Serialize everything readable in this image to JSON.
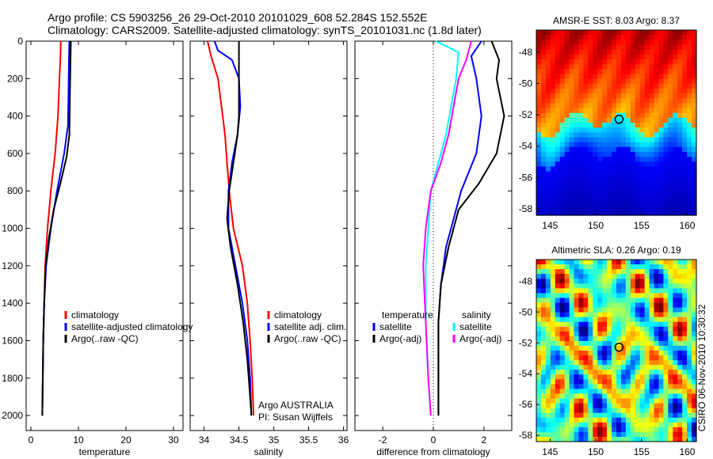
{
  "header": {
    "line1": "Argo profile: CS 5903256_26 29-Oct-2010 20101029_608 52.284S 152.552E",
    "line2": "Climatology: CARS2009. Satellite-adjusted climatology: synTS_20101031.nc (1.8d later)"
  },
  "side_stamp": "CSIRO 06-Nov-2010 10:30:32",
  "colors": {
    "climatology": "#ff0000",
    "satellite": "#0000ff",
    "argo": "#000000",
    "satellite_diff_salinity": "#00ffff",
    "argo_diff_salinity": "#ff00ff"
  },
  "chart_data": [
    {
      "type": "line",
      "xlabel": "temperature",
      "x_ticks": [
        "0",
        "10",
        "20",
        "30"
      ],
      "y_ticks": [
        "0",
        "200",
        "400",
        "600",
        "800",
        "1000",
        "1200",
        "1400",
        "1600",
        "1800",
        "2000"
      ],
      "xlim": [
        -1,
        32
      ],
      "ylim": [
        2080,
        0
      ],
      "y_reversed": true,
      "legend": [
        "climatology",
        "satellite-adjusted climatology",
        "Argo(..raw -QC)"
      ],
      "series": [
        {
          "name": "climatology",
          "color": "#ff0000",
          "points": [
            [
              6.3,
              0
            ],
            [
              6.2,
              100
            ],
            [
              6.0,
              200
            ],
            [
              5.7,
              400
            ],
            [
              5.1,
              600
            ],
            [
              4.2,
              800
            ],
            [
              3.5,
              1000
            ],
            [
              3.0,
              1200
            ],
            [
              2.8,
              1400
            ],
            [
              2.6,
              1600
            ],
            [
              2.5,
              1800
            ],
            [
              2.4,
              2000
            ]
          ]
        },
        {
          "name": "satellite-adjusted climatology",
          "color": "#0000ff",
          "points": [
            [
              8.1,
              0
            ],
            [
              8.0,
              100
            ],
            [
              7.9,
              300
            ],
            [
              7.8,
              450
            ],
            [
              7.0,
              600
            ],
            [
              5.5,
              800
            ],
            [
              4.2,
              1000
            ],
            [
              3.2,
              1200
            ],
            [
              2.8,
              1400
            ],
            [
              2.6,
              1600
            ],
            [
              2.5,
              1800
            ],
            [
              2.4,
              2000
            ]
          ]
        },
        {
          "name": "Argo(..raw -QC)",
          "color": "#000000",
          "points": [
            [
              8.4,
              0
            ],
            [
              8.3,
              150
            ],
            [
              8.2,
              300
            ],
            [
              8.1,
              500
            ],
            [
              7.5,
              620
            ],
            [
              6.2,
              760
            ],
            [
              4.8,
              900
            ],
            [
              3.8,
              1050
            ],
            [
              3.1,
              1200
            ],
            [
              2.8,
              1400
            ],
            [
              2.6,
              1600
            ],
            [
              2.5,
              1800
            ],
            [
              2.4,
              2000
            ]
          ]
        }
      ]
    },
    {
      "type": "line",
      "xlabel": "salinity",
      "x_ticks": [
        "34",
        "34.5",
        "35",
        "35.5",
        "36"
      ],
      "y_ticks": [],
      "xlim": [
        33.8,
        36.05
      ],
      "ylim": [
        2080,
        0
      ],
      "y_reversed": true,
      "legend": [
        "climatology",
        "satellite adj. clim.",
        "Argo(..raw -QC)"
      ],
      "annotations": [
        "Argo AUSTRALIA",
        "PI: Susan Wijffels"
      ],
      "series": [
        {
          "name": "climatology",
          "color": "#ff0000",
          "points": [
            [
              34.05,
              0
            ],
            [
              34.1,
              80
            ],
            [
              34.2,
              200
            ],
            [
              34.25,
              350
            ],
            [
              34.3,
              500
            ],
            [
              34.33,
              650
            ],
            [
              34.36,
              800
            ],
            [
              34.42,
              1000
            ],
            [
              34.55,
              1200
            ],
            [
              34.62,
              1400
            ],
            [
              34.66,
              1600
            ],
            [
              34.69,
              1800
            ],
            [
              34.71,
              2000
            ]
          ]
        },
        {
          "name": "satellite adj. clim.",
          "color": "#0000ff",
          "points": [
            [
              34.15,
              0
            ],
            [
              34.2,
              50
            ],
            [
              34.4,
              100
            ],
            [
              34.5,
              200
            ],
            [
              34.52,
              350
            ],
            [
              34.48,
              500
            ],
            [
              34.4,
              650
            ],
            [
              34.35,
              800
            ],
            [
              34.35,
              1000
            ],
            [
              34.45,
              1200
            ],
            [
              34.55,
              1400
            ],
            [
              34.62,
              1600
            ],
            [
              34.66,
              1800
            ],
            [
              34.68,
              2000
            ]
          ]
        },
        {
          "name": "Argo(..raw -QC)",
          "color": "#000000",
          "points": [
            [
              34.5,
              0
            ],
            [
              34.5,
              100
            ],
            [
              34.5,
              200
            ],
            [
              34.5,
              300
            ],
            [
              34.5,
              400
            ],
            [
              34.48,
              500
            ],
            [
              34.42,
              650
            ],
            [
              34.36,
              800
            ],
            [
              34.33,
              950
            ],
            [
              34.38,
              1100
            ],
            [
              34.48,
              1300
            ],
            [
              34.56,
              1500
            ],
            [
              34.62,
              1700
            ],
            [
              34.66,
              1900
            ],
            [
              34.68,
              2000
            ]
          ]
        }
      ]
    },
    {
      "type": "line",
      "xlabel": "difference from climatology",
      "x_ticks": [
        "-2",
        "0",
        "2"
      ],
      "y_ticks": [],
      "xlim": [
        -3.1,
        3.1
      ],
      "ylim": [
        2080,
        0
      ],
      "y_reversed": true,
      "zero_line": true,
      "legend_groups": [
        {
          "title": "temperature",
          "items": [
            "satellite",
            "Argo(-adj)"
          ]
        },
        {
          "title": "salinity",
          "items": [
            "satellite",
            "Argo(-adj)"
          ]
        }
      ],
      "series": [
        {
          "name": "temperature satellite",
          "color": "#0000ff",
          "points": [
            [
              1.9,
              0
            ],
            [
              1.5,
              80
            ],
            [
              1.7,
              200
            ],
            [
              1.9,
              400
            ],
            [
              1.7,
              600
            ],
            [
              1.1,
              800
            ],
            [
              0.7,
              1000
            ],
            [
              0.5,
              1100
            ],
            [
              0.3,
              1300
            ],
            [
              0.2,
              1500
            ],
            [
              0.2,
              2000
            ]
          ]
        },
        {
          "name": "temperature Argo(-adj)",
          "color": "#000000",
          "points": [
            [
              2.3,
              0
            ],
            [
              2.6,
              100
            ],
            [
              2.5,
              200
            ],
            [
              2.8,
              400
            ],
            [
              2.5,
              600
            ],
            [
              1.8,
              760
            ],
            [
              1.0,
              900
            ],
            [
              0.6,
              1100
            ],
            [
              0.3,
              1300
            ],
            [
              0.2,
              1500
            ],
            [
              0.2,
              2000
            ]
          ]
        },
        {
          "name": "salinity satellite",
          "color": "#00ffff",
          "points": [
            [
              0.1,
              0
            ],
            [
              1.0,
              60
            ],
            [
              0.9,
              200
            ],
            [
              0.7,
              350
            ],
            [
              0.5,
              500
            ],
            [
              0.2,
              650
            ],
            [
              -0.1,
              800
            ],
            [
              -0.2,
              1000
            ],
            [
              -0.3,
              1200
            ],
            [
              -0.3,
              1500
            ],
            [
              -0.2,
              1800
            ],
            [
              -0.1,
              2000
            ]
          ]
        },
        {
          "name": "salinity Argo(-adj)",
          "color": "#ff00ff",
          "points": [
            [
              1.5,
              0
            ],
            [
              1.3,
              100
            ],
            [
              1.0,
              200
            ],
            [
              0.8,
              350
            ],
            [
              0.6,
              500
            ],
            [
              0.3,
              650
            ],
            [
              -0.1,
              800
            ],
            [
              -0.3,
              1000
            ],
            [
              -0.4,
              1200
            ],
            [
              -0.3,
              1500
            ],
            [
              -0.2,
              1800
            ],
            [
              -0.1,
              2000
            ]
          ]
        }
      ]
    },
    {
      "type": "heatmap",
      "title": "AMSR-E SST: 8.03 Argo: 8.37",
      "x_ticks": [
        "145",
        "150",
        "155",
        "160"
      ],
      "y_ticks": [
        "-48",
        "-50",
        "-52",
        "-54",
        "-56",
        "-58"
      ],
      "xlim": [
        143.5,
        161
      ],
      "ylim": [
        -58.4,
        -46.6
      ],
      "marker": [
        152.55,
        -52.28
      ]
    },
    {
      "type": "heatmap",
      "title": "Altimetric SLA: 0.26 Argo: 0.19",
      "x_ticks": [
        "145",
        "150",
        "155",
        "160"
      ],
      "y_ticks": [
        "-48",
        "-50",
        "-52",
        "-54",
        "-56",
        "-58"
      ],
      "xlim": [
        143.5,
        161
      ],
      "ylim": [
        -58.4,
        -46.6
      ],
      "marker": [
        152.55,
        -52.28
      ]
    }
  ]
}
